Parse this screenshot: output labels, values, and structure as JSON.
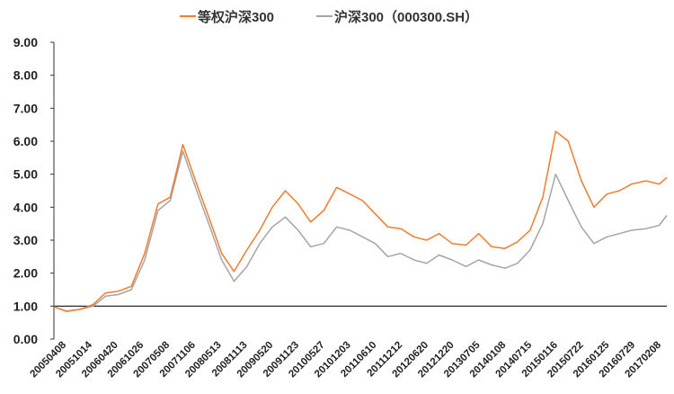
{
  "chart_data": {
    "type": "line",
    "title": "",
    "xlabel": "",
    "ylabel": "",
    "ylim": [
      0,
      9
    ],
    "yticks": [
      "0.00",
      "1.00",
      "2.00",
      "3.00",
      "4.00",
      "5.00",
      "6.00",
      "7.00",
      "8.00",
      "9.00"
    ],
    "grid": false,
    "legend_position": "top",
    "x_tick_labels": [
      "20050408",
      "20051014",
      "20060420",
      "20061026",
      "20070508",
      "20071106",
      "20080513",
      "20081113",
      "20090520",
      "20091123",
      "20100527",
      "20101203",
      "20110610",
      "20111212",
      "20120620",
      "20121220",
      "20130705",
      "20140108",
      "20140715",
      "20150116",
      "20150722",
      "20160125",
      "20160729",
      "20170208"
    ],
    "x": [
      "20050408",
      "20050708",
      "20051014",
      "20060120",
      "20060420",
      "20060720",
      "20061026",
      "20070131",
      "20070508",
      "20070805",
      "20071106",
      "20080215",
      "20080513",
      "20080815",
      "20081113",
      "20090215",
      "20090520",
      "20090820",
      "20091123",
      "20100225",
      "20100527",
      "20100831",
      "20101203",
      "20110310",
      "20110610",
      "20110910",
      "20111212",
      "20120315",
      "20120620",
      "20120920",
      "20121220",
      "20130325",
      "20130705",
      "20131005",
      "20140108",
      "20140415",
      "20140715",
      "20141015",
      "20150116",
      "20150420",
      "20150722",
      "20151025",
      "20160125",
      "20160429",
      "20160729",
      "20161025",
      "20170208",
      "20170515",
      "20170710"
    ],
    "series": [
      {
        "name": "等权沪深300",
        "color": "#ED7D31",
        "values": [
          0.98,
          0.84,
          0.9,
          1.05,
          1.4,
          1.45,
          1.6,
          2.6,
          4.1,
          4.3,
          5.9,
          4.7,
          3.7,
          2.6,
          2.05,
          2.7,
          3.3,
          4.0,
          4.5,
          4.1,
          3.55,
          3.9,
          4.6,
          4.4,
          4.2,
          3.8,
          3.4,
          3.35,
          3.1,
          3.0,
          3.2,
          2.9,
          2.85,
          3.2,
          2.8,
          2.75,
          2.95,
          3.3,
          4.3,
          6.3,
          6.0,
          4.8,
          4.0,
          4.4,
          4.5,
          4.7,
          4.8,
          4.7,
          4.9
        ]
      },
      {
        "name": "沪深300（000300.SH）",
        "color": "#A5A5A5",
        "values": [
          0.98,
          0.85,
          0.9,
          1.0,
          1.3,
          1.35,
          1.5,
          2.4,
          3.9,
          4.2,
          5.7,
          4.5,
          3.5,
          2.4,
          1.75,
          2.2,
          2.9,
          3.4,
          3.7,
          3.3,
          2.8,
          2.9,
          3.4,
          3.3,
          3.1,
          2.9,
          2.5,
          2.6,
          2.4,
          2.3,
          2.55,
          2.4,
          2.2,
          2.4,
          2.25,
          2.15,
          2.3,
          2.7,
          3.5,
          5.0,
          4.2,
          3.4,
          2.9,
          3.1,
          3.2,
          3.3,
          3.35,
          3.45,
          3.75
        ]
      }
    ]
  }
}
